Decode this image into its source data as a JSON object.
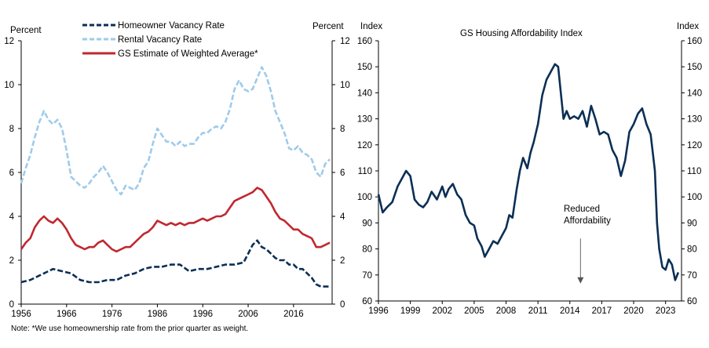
{
  "note": "Note: *We use homeownership rate from the prior quarter as weight.",
  "colors": {
    "homeowner": "#0b2f55",
    "rental": "#9fcbeb",
    "weighted": "#c0282f",
    "affordability": "#0b2f55",
    "axis": "#000000"
  },
  "chart_data": [
    {
      "type": "line",
      "title": "",
      "ylabel_left": "Percent",
      "ylabel_right": "Percent",
      "ylim": [
        0,
        12
      ],
      "yticks": [
        "0",
        "2",
        "4",
        "6",
        "8",
        "10",
        "12"
      ],
      "xlim": [
        1956,
        2024.5
      ],
      "xticks": [
        "1956",
        "1966",
        "1976",
        "1986",
        "1996",
        "2006",
        "2016"
      ],
      "legend": {
        "position": "top-center",
        "entries": [
          "Homeowner Vacancy Rate",
          "Rental Vacancy Rate",
          "GS Estimate of Weighted Average*"
        ]
      },
      "series": [
        {
          "name": "Homeowner Vacancy Rate",
          "style": "dashed",
          "x": [
            1956,
            1958,
            1960,
            1962,
            1963,
            1965,
            1967,
            1969,
            1971,
            1973,
            1975,
            1977,
            1979,
            1981,
            1983,
            1985,
            1987,
            1989,
            1991,
            1993,
            1995,
            1997,
            1999,
            2001,
            2003,
            2005,
            2006,
            2007,
            2008,
            2009,
            2010,
            2011,
            2012,
            2013,
            2014,
            2015,
            2016,
            2017,
            2018,
            2019,
            2020,
            2021,
            2022,
            2023,
            2024
          ],
          "y": [
            1.0,
            1.1,
            1.3,
            1.5,
            1.6,
            1.5,
            1.4,
            1.1,
            1.0,
            1.0,
            1.1,
            1.1,
            1.3,
            1.4,
            1.6,
            1.7,
            1.7,
            1.8,
            1.8,
            1.5,
            1.6,
            1.6,
            1.7,
            1.8,
            1.8,
            1.9,
            2.3,
            2.7,
            2.9,
            2.6,
            2.5,
            2.3,
            2.1,
            2.0,
            2.0,
            1.8,
            1.8,
            1.6,
            1.6,
            1.4,
            1.2,
            0.9,
            0.8,
            0.8,
            0.8
          ]
        },
        {
          "name": "Rental Vacancy Rate",
          "style": "dashed",
          "x": [
            1956,
            1957,
            1958,
            1959,
            1960,
            1961,
            1962,
            1963,
            1964,
            1965,
            1966,
            1967,
            1968,
            1969,
            1970,
            1971,
            1972,
            1973,
            1974,
            1975,
            1976,
            1977,
            1978,
            1979,
            1980,
            1981,
            1982,
            1983,
            1984,
            1985,
            1986,
            1987,
            1988,
            1989,
            1990,
            1991,
            1992,
            1993,
            1994,
            1995,
            1996,
            1997,
            1998,
            1999,
            2000,
            2001,
            2002,
            2003,
            2004,
            2005,
            2006,
            2007,
            2008,
            2009,
            2010,
            2011,
            2012,
            2013,
            2014,
            2015,
            2016,
            2017,
            2018,
            2019,
            2020,
            2021,
            2022,
            2023,
            2024
          ],
          "y": [
            5.5,
            6.2,
            6.8,
            7.6,
            8.3,
            8.8,
            8.4,
            8.2,
            8.4,
            8.0,
            7.0,
            5.8,
            5.6,
            5.4,
            5.3,
            5.5,
            5.8,
            6.0,
            6.3,
            6.0,
            5.6,
            5.2,
            5.0,
            5.4,
            5.3,
            5.2,
            5.5,
            6.2,
            6.5,
            7.3,
            8.0,
            7.7,
            7.4,
            7.4,
            7.2,
            7.4,
            7.2,
            7.3,
            7.3,
            7.6,
            7.8,
            7.8,
            8.0,
            8.1,
            8.0,
            8.3,
            8.9,
            9.8,
            10.2,
            9.8,
            9.7,
            9.8,
            10.3,
            10.8,
            10.4,
            9.7,
            8.8,
            8.3,
            7.8,
            7.1,
            7.0,
            7.2,
            6.9,
            6.8,
            6.6,
            6.0,
            5.8,
            6.4,
            6.6
          ]
        },
        {
          "name": "GS Estimate of Weighted Average*",
          "style": "solid",
          "x": [
            1956,
            1957,
            1958,
            1959,
            1960,
            1961,
            1962,
            1963,
            1964,
            1965,
            1966,
            1967,
            1968,
            1969,
            1970,
            1971,
            1972,
            1973,
            1974,
            1975,
            1976,
            1977,
            1978,
            1979,
            1980,
            1981,
            1982,
            1983,
            1984,
            1985,
            1986,
            1987,
            1988,
            1989,
            1990,
            1991,
            1992,
            1993,
            1994,
            1995,
            1996,
            1997,
            1998,
            1999,
            2000,
            2001,
            2002,
            2003,
            2004,
            2005,
            2006,
            2007,
            2008,
            2009,
            2010,
            2011,
            2012,
            2013,
            2014,
            2015,
            2016,
            2017,
            2018,
            2019,
            2020,
            2021,
            2022,
            2023,
            2024
          ],
          "y": [
            2.5,
            2.8,
            3.0,
            3.5,
            3.8,
            4.0,
            3.8,
            3.7,
            3.9,
            3.7,
            3.4,
            3.0,
            2.7,
            2.6,
            2.5,
            2.6,
            2.6,
            2.8,
            2.9,
            2.7,
            2.5,
            2.4,
            2.5,
            2.6,
            2.6,
            2.8,
            3.0,
            3.2,
            3.3,
            3.5,
            3.8,
            3.7,
            3.6,
            3.7,
            3.6,
            3.7,
            3.6,
            3.7,
            3.7,
            3.8,
            3.9,
            3.8,
            3.9,
            4.0,
            4.0,
            4.1,
            4.4,
            4.7,
            4.8,
            4.9,
            5.0,
            5.1,
            5.3,
            5.2,
            4.9,
            4.6,
            4.2,
            3.9,
            3.8,
            3.6,
            3.4,
            3.4,
            3.2,
            3.1,
            3.0,
            2.6,
            2.6,
            2.7,
            2.8
          ]
        }
      ]
    },
    {
      "type": "line",
      "title": "GS Housing Affordability Index",
      "ylabel_left": "Index",
      "ylabel_right": "Index",
      "ylim": [
        60,
        160
      ],
      "yticks": [
        "60",
        "70",
        "80",
        "90",
        "100",
        "110",
        "120",
        "130",
        "140",
        "150",
        "160"
      ],
      "xlim": [
        1996,
        2024.5
      ],
      "xticks": [
        "1996",
        "1999",
        "2002",
        "2005",
        "2008",
        "2011",
        "2014",
        "2017",
        "2020",
        "2023"
      ],
      "annotation": {
        "text_line1": "Reduced",
        "text_line2": "Affordability",
        "arrow_x": 2015,
        "arrow_from": 84,
        "arrow_to": 67
      },
      "series": [
        {
          "name": "GS Housing Affordability Index",
          "style": "solid",
          "x": [
            1996,
            1996.4,
            1996.8,
            1997.3,
            1997.8,
            1998.2,
            1998.6,
            1999.0,
            1999.4,
            1999.8,
            2000.2,
            2000.6,
            2001.0,
            2001.5,
            2002.0,
            2002.3,
            2002.6,
            2003.0,
            2003.4,
            2003.8,
            2004.2,
            2004.6,
            2005.0,
            2005.3,
            2005.7,
            2006.0,
            2006.4,
            2006.8,
            2007.2,
            2007.6,
            2008.0,
            2008.3,
            2008.6,
            2009.0,
            2009.3,
            2009.6,
            2010.0,
            2010.3,
            2010.6,
            2011.0,
            2011.4,
            2011.8,
            2012.2,
            2012.6,
            2012.9,
            2013.1,
            2013.4,
            2013.7,
            2014.0,
            2014.4,
            2014.8,
            2015.2,
            2015.6,
            2016.0,
            2016.4,
            2016.8,
            2017.2,
            2017.6,
            2018.0,
            2018.4,
            2018.8,
            2019.2,
            2019.6,
            2020.0,
            2020.4,
            2020.8,
            2021.2,
            2021.6,
            2022.0,
            2022.2,
            2022.4,
            2022.7,
            2023.0,
            2023.3,
            2023.6,
            2023.9,
            2024.2
          ],
          "y": [
            101,
            94,
            96,
            98,
            104,
            107,
            110,
            108,
            99,
            97,
            96,
            98,
            102,
            99,
            104,
            100,
            103,
            105,
            101,
            99,
            93,
            90,
            89,
            84,
            81,
            77,
            80,
            83,
            82,
            85,
            88,
            93,
            92,
            103,
            110,
            115,
            111,
            117,
            121,
            128,
            139,
            145,
            148,
            151,
            150,
            142,
            130,
            133,
            130,
            131,
            130,
            133,
            127,
            135,
            130,
            124,
            125,
            124,
            118,
            115,
            108,
            114,
            125,
            128,
            132,
            134,
            128,
            124,
            110,
            90,
            80,
            73,
            72,
            76,
            74,
            68,
            71
          ]
        }
      ]
    }
  ]
}
